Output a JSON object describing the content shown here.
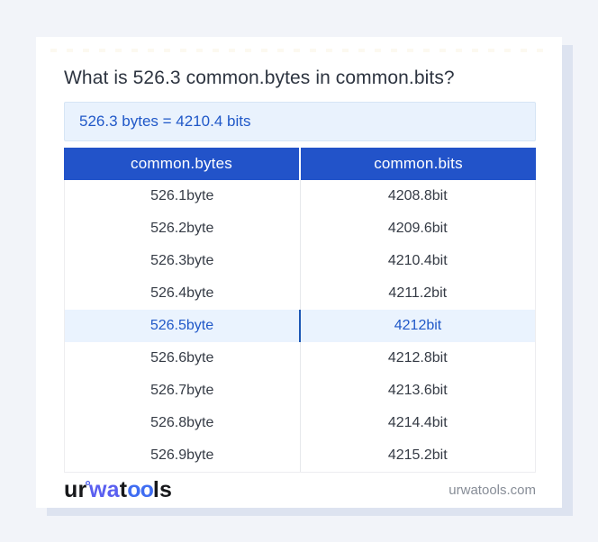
{
  "page": {
    "title": "What is 526.3 common.bytes in common.bits?",
    "answer": "526.3 bytes = 4210.4 bits",
    "site_domain": "urwatools.com"
  },
  "logo": {
    "seg1": "ur",
    "degree": "°",
    "seg2": "wa",
    "seg3": "t",
    "seg4": "oo",
    "seg5": "ls"
  },
  "table": {
    "headers": [
      "common.bytes",
      "common.bits"
    ],
    "rows": [
      {
        "from": "526.1byte",
        "to": "4208.8bit",
        "highlighted": false
      },
      {
        "from": "526.2byte",
        "to": "4209.6bit",
        "highlighted": false
      },
      {
        "from": "526.3byte",
        "to": "4210.4bit",
        "highlighted": false
      },
      {
        "from": "526.4byte",
        "to": "4211.2bit",
        "highlighted": false
      },
      {
        "from": "526.5byte",
        "to": "4212bit",
        "highlighted": true
      },
      {
        "from": "526.6byte",
        "to": "4212.8bit",
        "highlighted": false
      },
      {
        "from": "526.7byte",
        "to": "4213.6bit",
        "highlighted": false
      },
      {
        "from": "526.8byte",
        "to": "4214.4bit",
        "highlighted": false
      },
      {
        "from": "526.9byte",
        "to": "4215.2bit",
        "highlighted": false
      }
    ]
  },
  "colors": {
    "page_background": "#f2f4f9",
    "card_background": "#ffffff",
    "card_shadow": "#dde3f0",
    "header_blue": "#2253c9",
    "answer_box_background": "#e9f2fd",
    "answer_box_border": "#d6e5f5",
    "link_blue": "#2058c8",
    "highlight_row_background": "#eaf3fe",
    "highlight_divider_blue": "#1c57b5",
    "body_text": "#353b45",
    "muted_text": "#878d97"
  }
}
